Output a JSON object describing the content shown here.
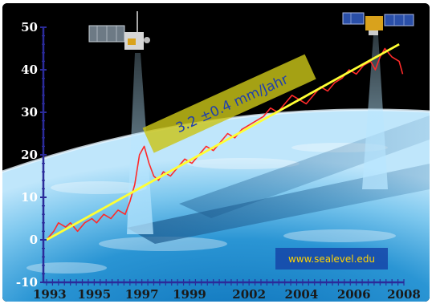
{
  "chart_data": {
    "type": "line",
    "title": "",
    "xlabel": "",
    "ylabel": "",
    "xlim": [
      1993,
      2008
    ],
    "ylim": [
      -10,
      50
    ],
    "y_ticks": [
      -10,
      0,
      10,
      20,
      30,
      40,
      50
    ],
    "x_tick_labels": [
      "1993",
      "1995",
      "1997",
      "1999",
      "2002",
      "2004",
      "2006",
      "2008"
    ],
    "x_tick_positions": [
      1993,
      1995,
      1997,
      1999,
      2001.5,
      2003.7,
      2005.9,
      2008
    ],
    "grid": false,
    "legend": "none",
    "series": [
      {
        "name": "",
        "color": "#ff2a2a",
        "x": [
          1993.0,
          1993.3,
          1993.5,
          1993.8,
          1994.0,
          1994.3,
          1994.6,
          1994.9,
          1995.1,
          1995.4,
          1995.7,
          1996.0,
          1996.3,
          1996.5,
          1996.7,
          1996.9,
          1997.1,
          1997.3,
          1997.5,
          1997.7,
          1997.9,
          1998.2,
          1998.5,
          1998.8,
          1999.1,
          1999.4,
          1999.7,
          2000.0,
          2000.3,
          2000.6,
          2000.9,
          2001.2,
          2001.5,
          2001.8,
          2002.1,
          2002.4,
          2002.7,
          2003.0,
          2003.3,
          2003.6,
          2003.9,
          2004.2,
          2004.5,
          2004.8,
          2005.1,
          2005.4,
          2005.7,
          2006.0,
          2006.3,
          2006.6,
          2006.8,
          2007.0,
          2007.2,
          2007.5,
          2007.8,
          2007.95
        ],
        "y": [
          0,
          2,
          4,
          3,
          4,
          2,
          4,
          5,
          4,
          6,
          5,
          7,
          6,
          9,
          13,
          20,
          22,
          18,
          15,
          14,
          16,
          15,
          17,
          19,
          18,
          20,
          22,
          21,
          23,
          25,
          24,
          26,
          27,
          28,
          29,
          31,
          30,
          32,
          34,
          33,
          32,
          34,
          36,
          35,
          37,
          38,
          40,
          39,
          41,
          42,
          40,
          43,
          45,
          43,
          42,
          39
        ]
      },
      {
        "name": "",
        "color": "#ffff33",
        "x": [
          1993,
          2007.8
        ],
        "y": [
          0,
          46
        ]
      }
    ],
    "annotations": {
      "trend_label": "3.2 ±0.4 mm/Jahr",
      "website": "www.sealevel.edu"
    }
  }
}
